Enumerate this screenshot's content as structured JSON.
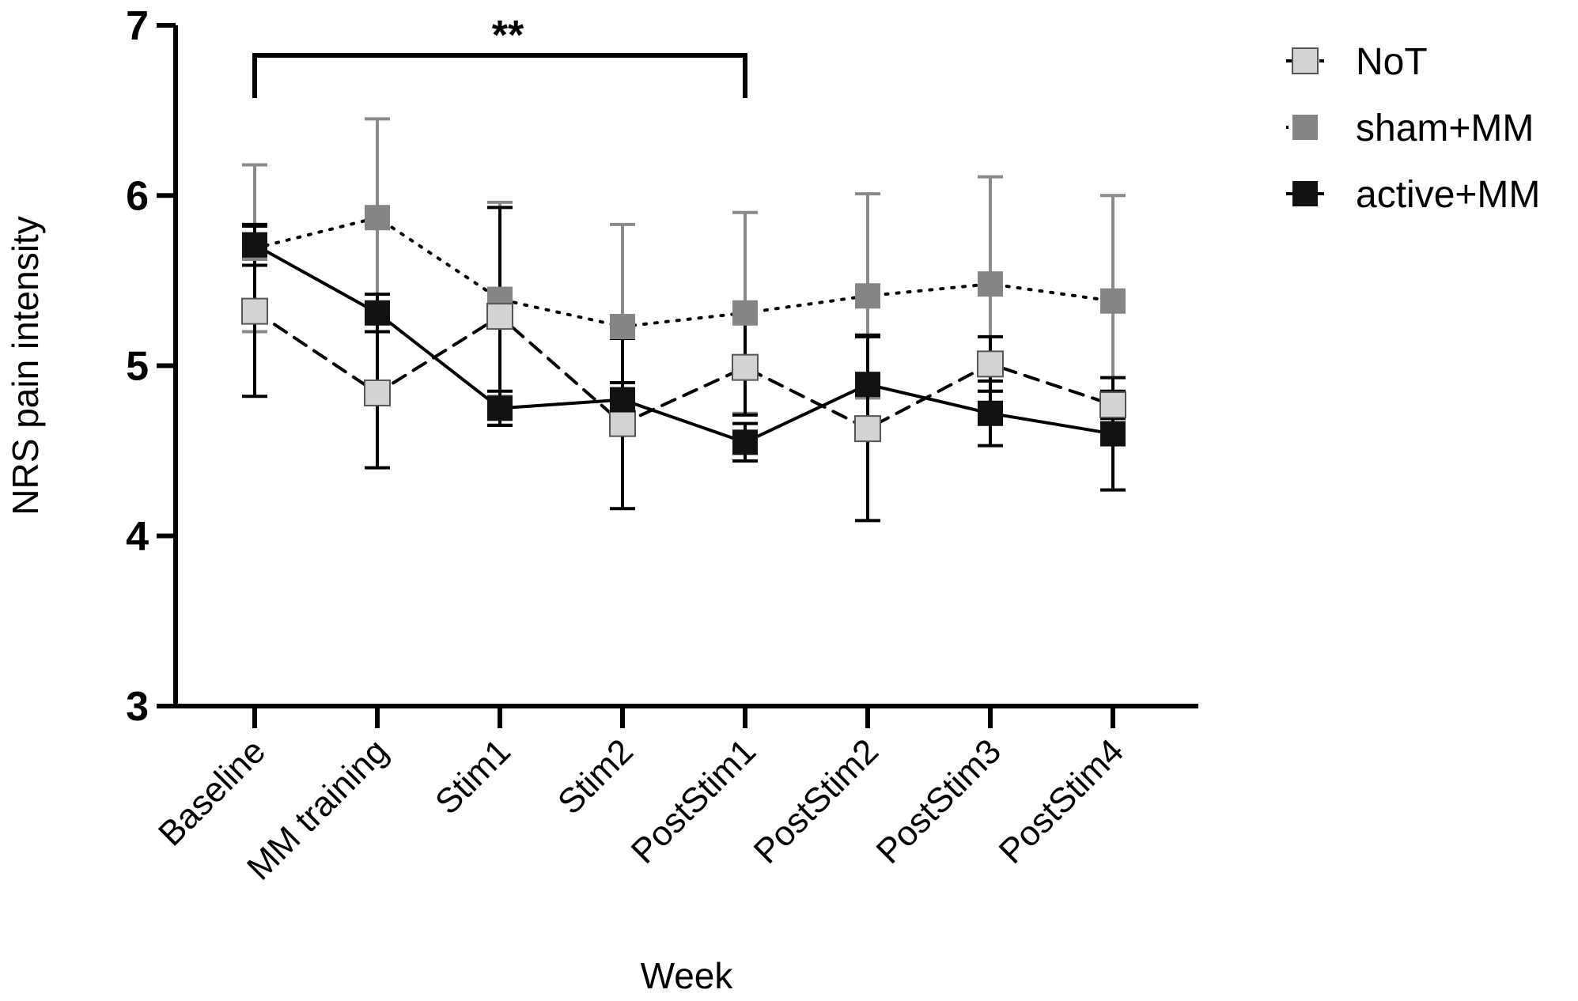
{
  "chart_data": {
    "type": "line",
    "title": "",
    "xlabel": "Week",
    "ylabel": "NRS pain intensity",
    "ylim": [
      3,
      7
    ],
    "yticks": [
      3,
      4,
      5,
      6,
      7
    ],
    "categories": [
      "Baseline",
      "MM training",
      "Stim1",
      "Stim2",
      "PostStim1",
      "PostStim2",
      "PostStim3",
      "PostStim4"
    ],
    "series": [
      {
        "name": "NoT",
        "line_style": "dashed",
        "marker_color": "#d3d3d3",
        "error_color": "#000000",
        "values": [
          5.32,
          4.84,
          5.29,
          4.66,
          4.99,
          4.63,
          5.01,
          4.77
        ],
        "error": [
          0.5,
          0.44,
          0.64,
          0.5,
          0.28,
          0.54,
          0.16,
          0.08
        ]
      },
      {
        "name": "sham+MM",
        "line_style": "dotted",
        "marker_color": "#858585",
        "error_color": "#8a8a8a",
        "values": [
          5.69,
          5.87,
          5.39,
          5.23,
          5.31,
          5.41,
          5.48,
          5.38
        ],
        "error": [
          0.49,
          0.58,
          0.57,
          0.6,
          0.59,
          0.6,
          0.63,
          0.62
        ]
      },
      {
        "name": "active+MM",
        "line_style": "solid",
        "marker_color": "#111111",
        "error_color": "#000000",
        "values": [
          5.71,
          5.31,
          4.75,
          4.8,
          4.55,
          4.89,
          4.72,
          4.6
        ],
        "error": [
          0.12,
          0.11,
          0.1,
          0.1,
          0.11,
          0.29,
          0.19,
          0.33
        ]
      }
    ],
    "annotations": [
      {
        "text": "**",
        "from_category": "Baseline",
        "to_category": "PostStim1",
        "type": "significance-bracket"
      }
    ],
    "legend_position": "top-right",
    "grid": false
  }
}
